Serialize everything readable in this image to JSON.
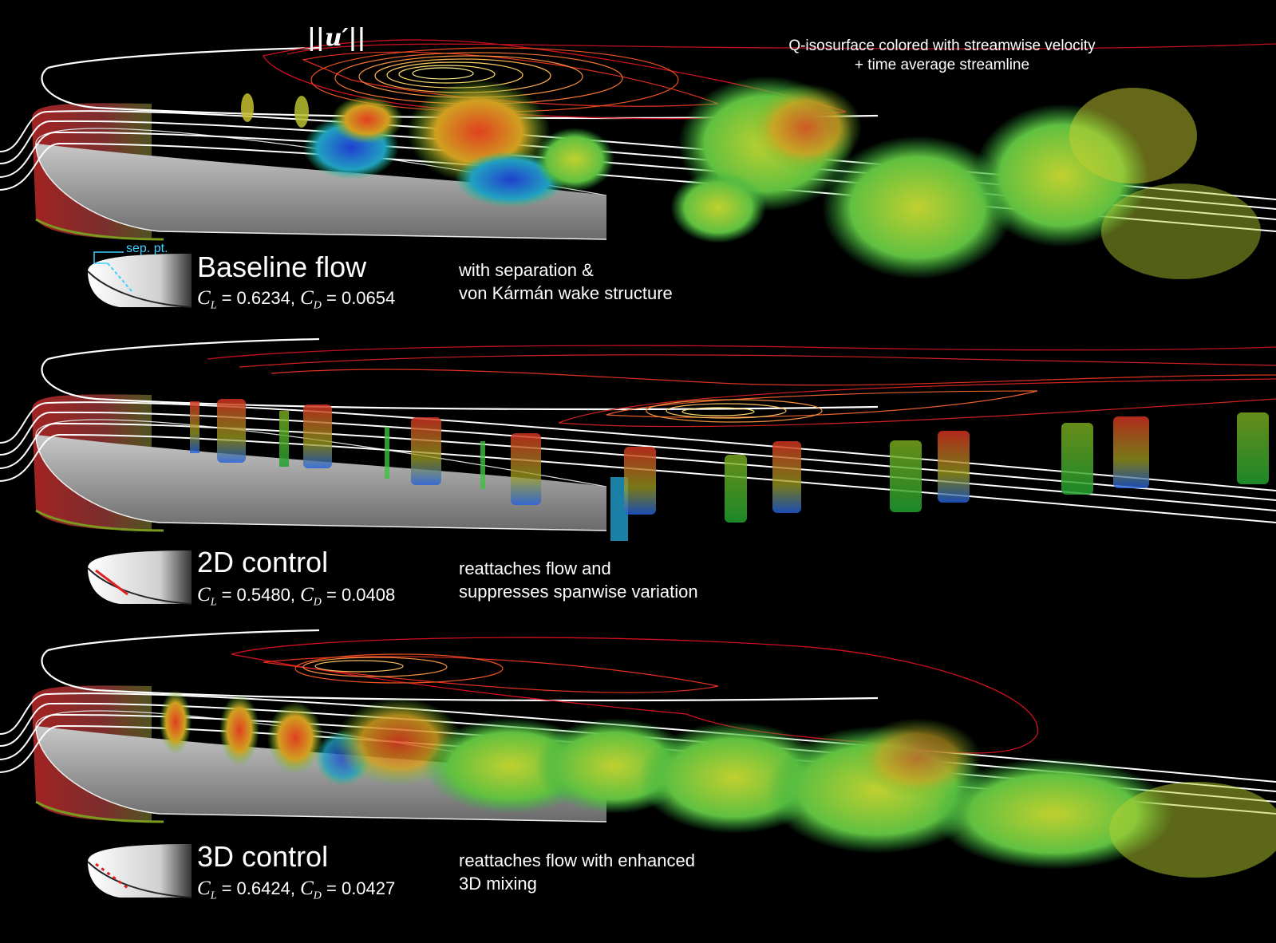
{
  "header": {
    "u_prime_label": "||u′||",
    "q_label_line1": "Q-isosurface colored with streamwise velocity",
    "q_label_line2": "+ time average streamline"
  },
  "panels": [
    {
      "title": "Baseline flow",
      "cl_symbol": "C",
      "cl_sub": "L",
      "cl_value": " = 0.6234, ",
      "cd_symbol": "C",
      "cd_sub": "D",
      "cd_value": " = 0.0654",
      "desc_line1": "with separation &",
      "desc_line2": "von Kármán wake structure",
      "inset_label": "sep. pt."
    },
    {
      "title": "2D control",
      "cl_symbol": "C",
      "cl_sub": "L",
      "cl_value": " = 0.5480, ",
      "cd_symbol": "C",
      "cd_sub": "D",
      "cd_value": " = 0.0408",
      "desc_line1": "reattaches flow and",
      "desc_line2": "suppresses spanwise variation"
    },
    {
      "title": "3D control",
      "cl_symbol": "C",
      "cl_sub": "L",
      "cl_value": " = 0.6424, ",
      "cd_symbol": "C",
      "cd_sub": "D",
      "cd_value": " = 0.0427",
      "desc_line1": "reattaches flow with enhanced",
      "desc_line2": "3D mixing"
    }
  ],
  "colors": {
    "background": "#000000",
    "airfoil": "#9a9a9a",
    "streamline": "#ffffff",
    "contour_outer": "#d01020",
    "contour_inner": "#ffe070",
    "sep_point": "#3fd0ff",
    "actuator": "#e02020"
  }
}
